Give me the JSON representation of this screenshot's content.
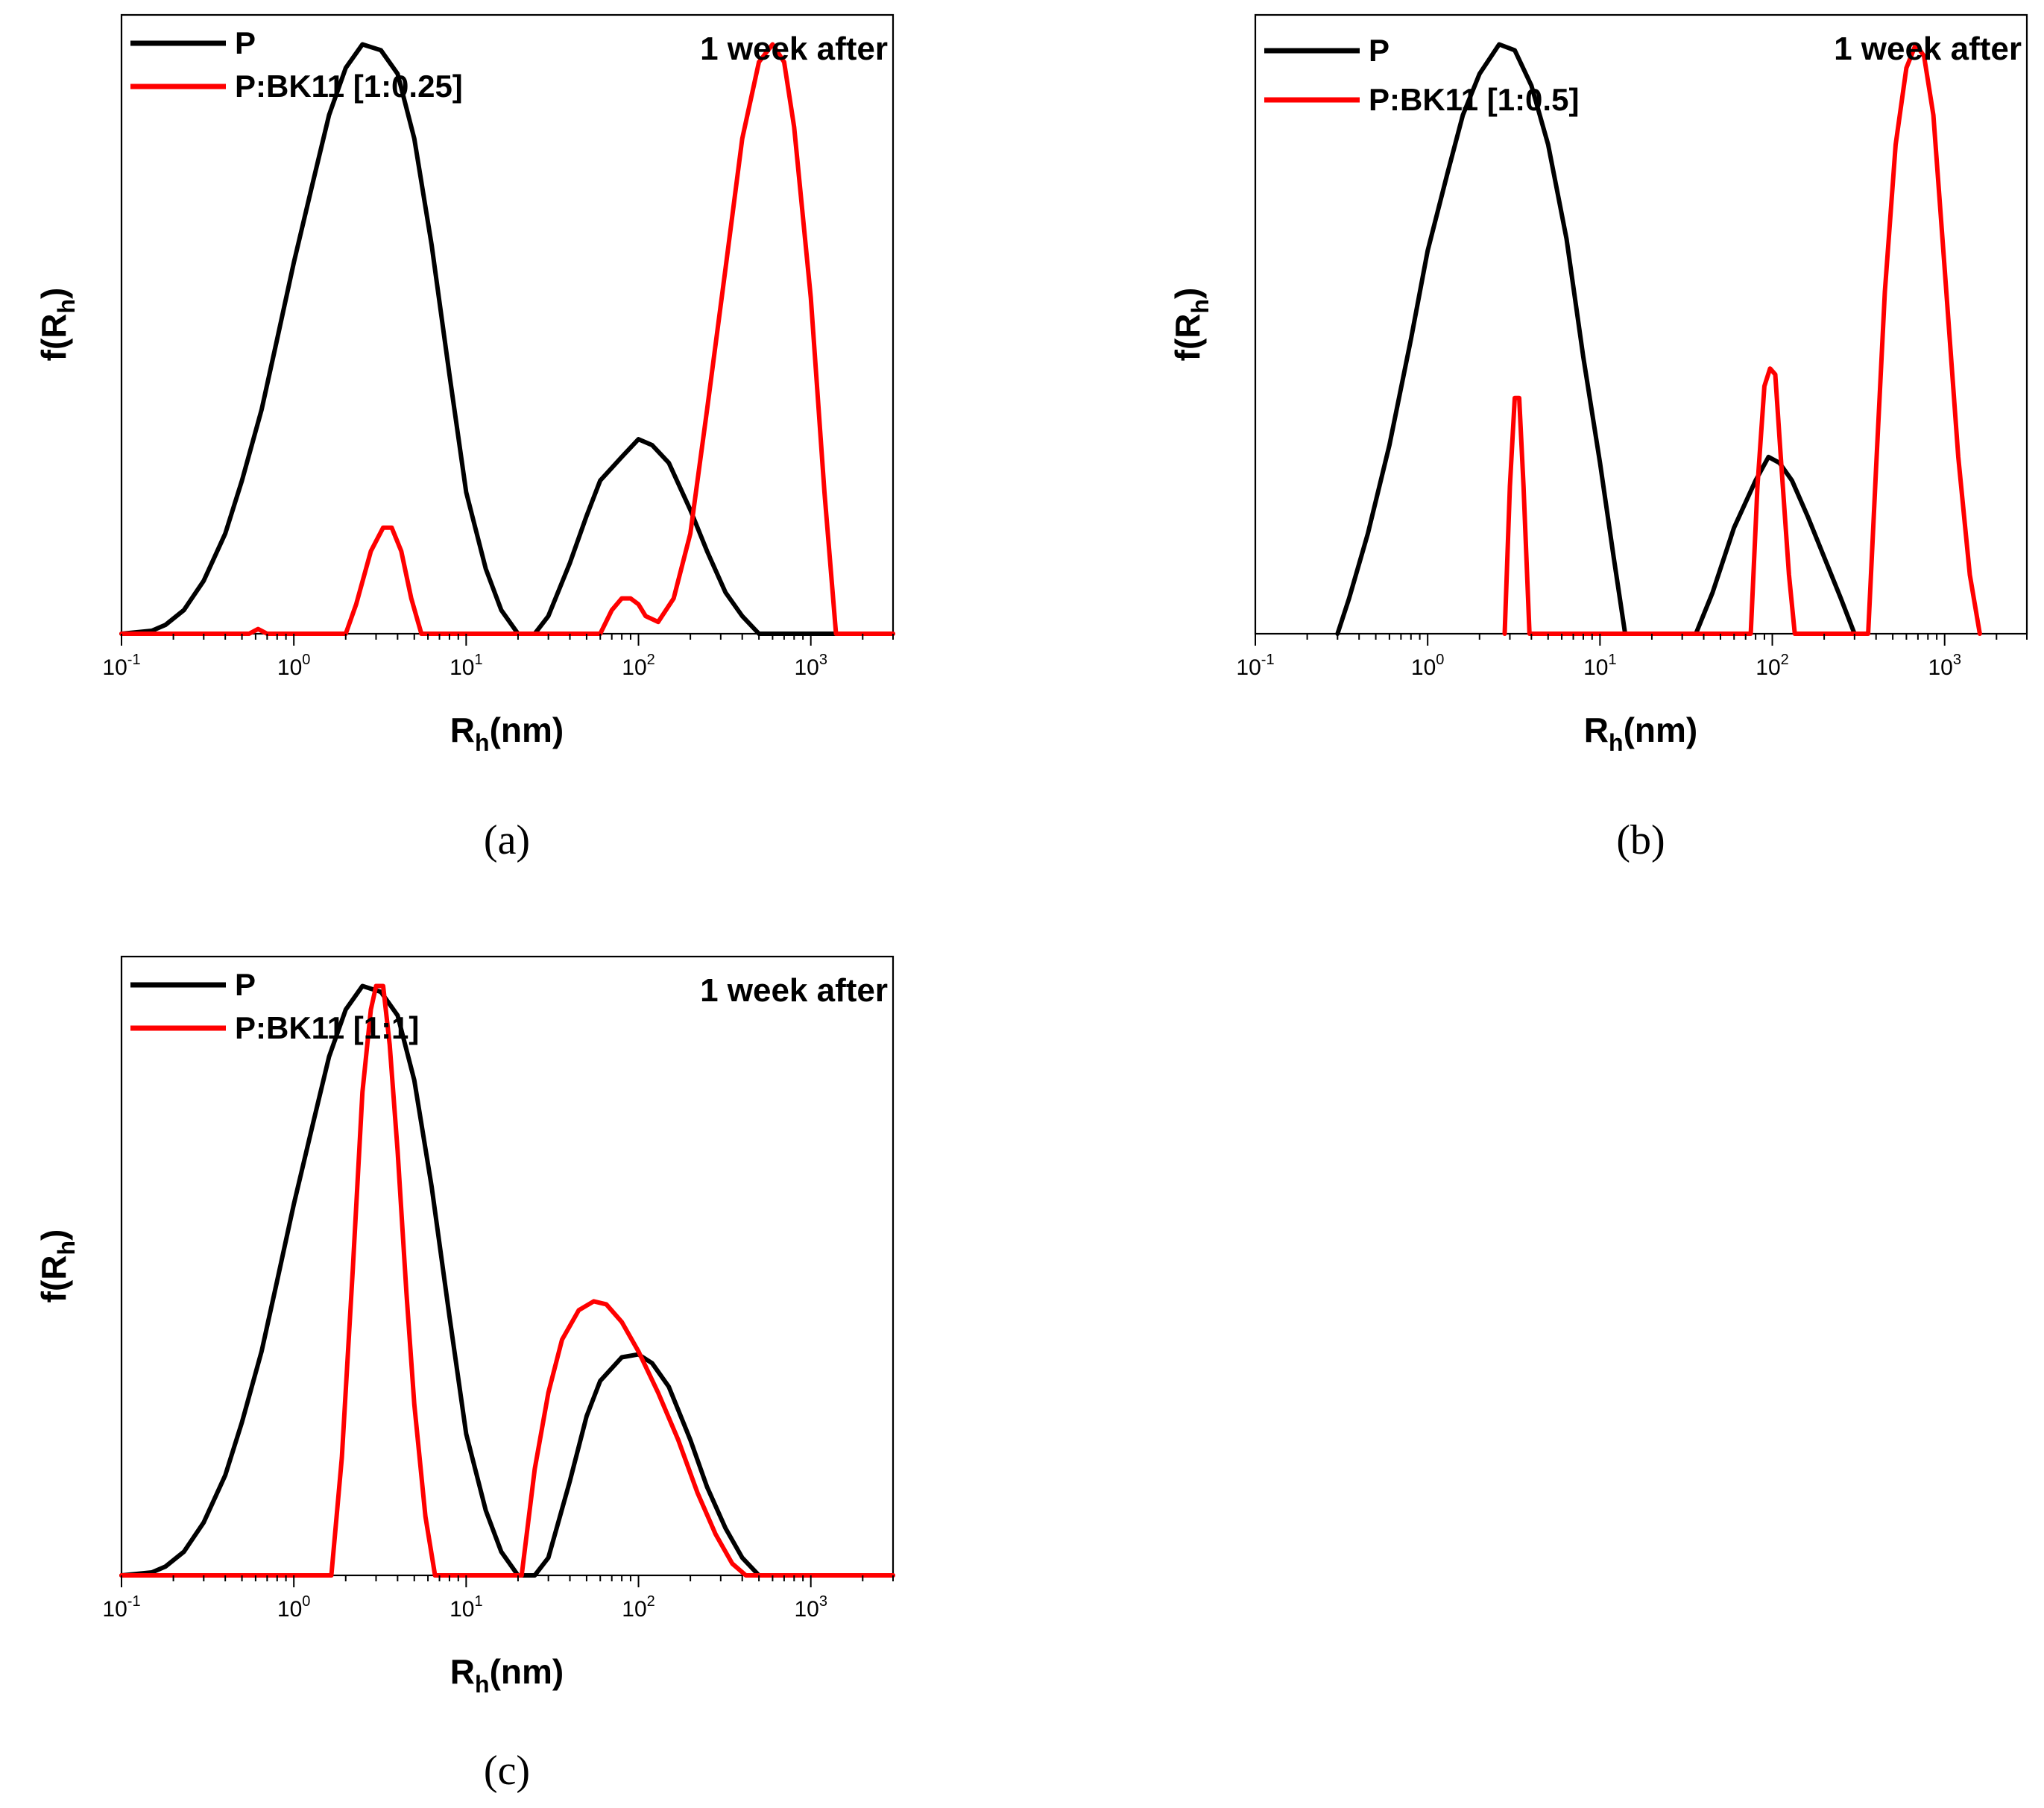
{
  "colors": {
    "P": "#000000",
    "BK11": "#ff0000"
  },
  "chart_data": [
    {
      "type": "line",
      "panel_label": "(a)",
      "annotation": "1 week after",
      "xlabel": "R_h(nm)",
      "xlabel_main": "R",
      "xlabel_sub": "h",
      "xlabel_tail": "(nm)",
      "ylabel_main": "f(R",
      "ylabel_sub": "h",
      "ylabel_tail": ")",
      "xscale": "log",
      "xlim": [
        0.1,
        3000
      ],
      "ylim": [
        0,
        1.05
      ],
      "ticks": [
        {
          "value": 0.1,
          "base": "10",
          "exp": "-1"
        },
        {
          "value": 1,
          "base": "10",
          "exp": "0"
        },
        {
          "value": 10,
          "base": "10",
          "exp": "1"
        },
        {
          "value": 100,
          "base": "10",
          "exp": "2"
        },
        {
          "value": 1000,
          "base": "10",
          "exp": "3"
        }
      ],
      "legend_position": "top-left",
      "series": [
        {
          "name": "P",
          "color": "#000000",
          "x": [
            0.1,
            0.15,
            0.18,
            0.23,
            0.3,
            0.4,
            0.5,
            0.65,
            0.8,
            1.0,
            1.3,
            1.6,
            2.0,
            2.5,
            3.2,
            4.0,
            5.0,
            6.3,
            8.0,
            10,
            13,
            16,
            20,
            25,
            30,
            40,
            50,
            60,
            80,
            100,
            120,
            150,
            200,
            250,
            320,
            400,
            500,
            3000
          ],
          "y": [
            0,
            0.005,
            0.015,
            0.04,
            0.09,
            0.17,
            0.26,
            0.38,
            0.5,
            0.63,
            0.77,
            0.88,
            0.96,
            1.0,
            0.99,
            0.95,
            0.84,
            0.66,
            0.44,
            0.24,
            0.11,
            0.04,
            0,
            0,
            0.03,
            0.12,
            0.2,
            0.26,
            0.3,
            0.33,
            0.32,
            0.29,
            0.21,
            0.14,
            0.07,
            0.03,
            0,
            0
          ]
        },
        {
          "name": "P:BK11 [1:0.25]",
          "color": "#ff0000",
          "x": [
            0.1,
            0.55,
            0.62,
            0.7,
            2.0,
            2.3,
            2.8,
            3.3,
            3.7,
            4.2,
            4.8,
            5.5,
            60,
            70,
            80,
            90,
            100,
            110,
            130,
            160,
            200,
            250,
            320,
            400,
            500,
            600,
            700,
            800,
            1000,
            1200,
            1400,
            3000
          ],
          "y": [
            0,
            0,
            0.008,
            0,
            0,
            0.05,
            0.14,
            0.18,
            0.18,
            0.14,
            0.06,
            0,
            0,
            0.04,
            0.06,
            0.06,
            0.05,
            0.03,
            0.02,
            0.06,
            0.17,
            0.38,
            0.62,
            0.84,
            0.97,
            1.0,
            0.97,
            0.86,
            0.57,
            0.24,
            0,
            0
          ]
        }
      ]
    },
    {
      "type": "line",
      "panel_label": "(b)",
      "annotation": "1 week after",
      "xlabel": "R_h(nm)",
      "xlabel_main": "R",
      "xlabel_sub": "h",
      "xlabel_tail": "(nm)",
      "ylabel_main": "f(R",
      "ylabel_sub": "h",
      "ylabel_tail": ")",
      "xscale": "log",
      "xlim": [
        0.1,
        3000
      ],
      "ylim": [
        0,
        1.05
      ],
      "ticks": [
        {
          "value": 0.1,
          "base": "10",
          "exp": "-1"
        },
        {
          "value": 1,
          "base": "10",
          "exp": "0"
        },
        {
          "value": 10,
          "base": "10",
          "exp": "1"
        },
        {
          "value": 100,
          "base": "10",
          "exp": "2"
        },
        {
          "value": 1000,
          "base": "10",
          "exp": "3"
        }
      ],
      "legend_position": "top-left",
      "series": [
        {
          "name": "P",
          "color": "#000000",
          "x": [
            0.3,
            0.35,
            0.45,
            0.6,
            0.8,
            1.0,
            1.3,
            1.6,
            2.0,
            2.6,
            3.2,
            4.0,
            5.0,
            6.4,
            8.0,
            10,
            12,
            14,
            36,
            45,
            60,
            80,
            95,
            110,
            130,
            160,
            200,
            250,
            300
          ],
          "y": [
            0,
            0.06,
            0.17,
            0.32,
            0.5,
            0.65,
            0.78,
            0.88,
            0.95,
            1.0,
            0.99,
            0.93,
            0.83,
            0.67,
            0.47,
            0.29,
            0.13,
            0,
            0,
            0.07,
            0.18,
            0.26,
            0.3,
            0.29,
            0.26,
            0.2,
            0.13,
            0.06,
            0
          ]
        },
        {
          "name": "P:BK11 [1:0.5]",
          "color": "#ff0000",
          "x": [
            2.8,
            3.0,
            3.2,
            3.4,
            3.6,
            3.9,
            75,
            82,
            90,
            97,
            104,
            112,
            125,
            135,
            360,
            400,
            450,
            520,
            600,
            680,
            760,
            860,
            1000,
            1200,
            1400,
            1600
          ],
          "y": [
            0,
            0.25,
            0.4,
            0.4,
            0.25,
            0,
            0,
            0.25,
            0.42,
            0.45,
            0.44,
            0.3,
            0.1,
            0,
            0,
            0.28,
            0.58,
            0.83,
            0.96,
            1.0,
            0.98,
            0.88,
            0.62,
            0.3,
            0.1,
            0
          ]
        }
      ]
    },
    {
      "type": "line",
      "panel_label": "(c)",
      "annotation": "1 week after",
      "xlabel": "R_h(nm)",
      "xlabel_main": "R",
      "xlabel_sub": "h",
      "xlabel_tail": "(nm)",
      "ylabel_main": "f(R",
      "ylabel_sub": "h",
      "ylabel_tail": ")",
      "xscale": "log",
      "xlim": [
        0.1,
        3000
      ],
      "ylim": [
        0,
        1.05
      ],
      "ticks": [
        {
          "value": 0.1,
          "base": "10",
          "exp": "-1"
        },
        {
          "value": 1,
          "base": "10",
          "exp": "0"
        },
        {
          "value": 10,
          "base": "10",
          "exp": "1"
        },
        {
          "value": 100,
          "base": "10",
          "exp": "2"
        },
        {
          "value": 1000,
          "base": "10",
          "exp": "3"
        }
      ],
      "legend_position": "top-left",
      "series": [
        {
          "name": "P",
          "color": "#000000",
          "x": [
            0.1,
            0.15,
            0.18,
            0.23,
            0.3,
            0.4,
            0.5,
            0.65,
            0.8,
            1.0,
            1.3,
            1.6,
            2.0,
            2.5,
            3.2,
            4.0,
            5.0,
            6.3,
            8.0,
            10,
            13,
            16,
            20,
            25,
            30,
            40,
            50,
            60,
            80,
            100,
            120,
            150,
            200,
            250,
            320,
            400,
            500,
            3000
          ],
          "y": [
            0,
            0.005,
            0.015,
            0.04,
            0.09,
            0.17,
            0.26,
            0.38,
            0.5,
            0.63,
            0.77,
            0.88,
            0.96,
            1.0,
            0.99,
            0.95,
            0.84,
            0.66,
            0.44,
            0.24,
            0.11,
            0.04,
            0,
            0,
            0.03,
            0.16,
            0.27,
            0.33,
            0.37,
            0.375,
            0.36,
            0.32,
            0.23,
            0.15,
            0.08,
            0.03,
            0,
            0
          ]
        },
        {
          "name": "P:BK11 [1:1]",
          "color": "#ff0000",
          "x": [
            0.1,
            1.65,
            1.9,
            2.2,
            2.5,
            2.8,
            3.0,
            3.3,
            3.6,
            4.0,
            4.5,
            5.0,
            5.8,
            6.6,
            21,
            25,
            30,
            36,
            45,
            55,
            65,
            80,
            100,
            130,
            170,
            220,
            280,
            350,
            420,
            3000
          ],
          "y": [
            0,
            0,
            0.2,
            0.52,
            0.82,
            0.96,
            1.0,
            1.0,
            0.9,
            0.72,
            0.48,
            0.29,
            0.1,
            0,
            0,
            0.18,
            0.31,
            0.4,
            0.45,
            0.465,
            0.46,
            0.43,
            0.38,
            0.31,
            0.23,
            0.14,
            0.07,
            0.02,
            0,
            0
          ]
        }
      ]
    }
  ]
}
